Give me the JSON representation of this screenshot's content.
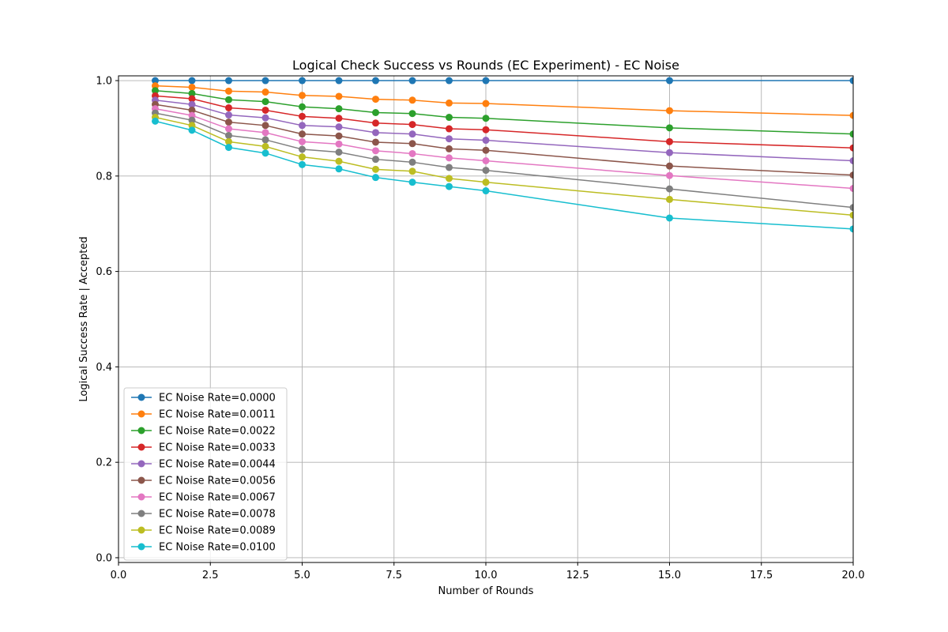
{
  "chart_data": {
    "type": "line",
    "title": "Logical Check Success vs Rounds (EC Experiment) - EC Noise",
    "xlabel": "Number of Rounds",
    "ylabel": "Logical Success Rate | Accepted",
    "xlim": [
      0,
      20
    ],
    "ylim": [
      -0.01,
      1.01
    ],
    "xticks": [
      0,
      2.5,
      5,
      7.5,
      10,
      12.5,
      15,
      17.5,
      20
    ],
    "xtick_labels": [
      "0.0",
      "2.5",
      "5.0",
      "7.5",
      "10.0",
      "12.5",
      "15.0",
      "17.5",
      "20.0"
    ],
    "yticks": [
      0,
      0.2,
      0.4,
      0.6,
      0.8,
      1.0
    ],
    "ytick_labels": [
      "0.0",
      "0.2",
      "0.4",
      "0.6",
      "0.8",
      "1.0"
    ],
    "grid": true,
    "legend_position": "lower-left",
    "x": [
      1,
      2,
      3,
      4,
      5,
      6,
      7,
      8,
      9,
      10,
      15,
      20
    ],
    "series": [
      {
        "name": "EC Noise Rate=0.0000",
        "color": "#1f77b4",
        "values": [
          1.0,
          1.0,
          1.0,
          1.0,
          1.0,
          1.0,
          1.0,
          1.0,
          1.0,
          1.0,
          1.0,
          1.0
        ]
      },
      {
        "name": "EC Noise Rate=0.0011",
        "color": "#ff7f0e",
        "values": [
          0.989,
          0.986,
          0.978,
          0.976,
          0.969,
          0.967,
          0.961,
          0.959,
          0.953,
          0.952,
          0.937,
          0.927
        ]
      },
      {
        "name": "EC Noise Rate=0.0022",
        "color": "#2ca02c",
        "values": [
          0.979,
          0.973,
          0.96,
          0.956,
          0.945,
          0.941,
          0.933,
          0.931,
          0.923,
          0.921,
          0.901,
          0.888
        ]
      },
      {
        "name": "EC Noise Rate=0.0033",
        "color": "#d62728",
        "values": [
          0.968,
          0.962,
          0.943,
          0.938,
          0.925,
          0.921,
          0.911,
          0.908,
          0.899,
          0.897,
          0.872,
          0.859
        ]
      },
      {
        "name": "EC Noise Rate=0.0044",
        "color": "#9467bd",
        "values": [
          0.959,
          0.95,
          0.928,
          0.922,
          0.906,
          0.903,
          0.891,
          0.888,
          0.878,
          0.875,
          0.849,
          0.832
        ]
      },
      {
        "name": "EC Noise Rate=0.0056",
        "color": "#8c564b",
        "values": [
          0.95,
          0.938,
          0.913,
          0.906,
          0.888,
          0.884,
          0.871,
          0.868,
          0.857,
          0.854,
          0.821,
          0.802
        ]
      },
      {
        "name": "EC Noise Rate=0.0067",
        "color": "#e377c2",
        "values": [
          0.941,
          0.927,
          0.899,
          0.891,
          0.872,
          0.867,
          0.853,
          0.847,
          0.838,
          0.832,
          0.801,
          0.774
        ]
      },
      {
        "name": "EC Noise Rate=0.0078",
        "color": "#7f7f7f",
        "values": [
          0.932,
          0.917,
          0.885,
          0.876,
          0.856,
          0.85,
          0.835,
          0.829,
          0.818,
          0.812,
          0.773,
          0.734
        ]
      },
      {
        "name": "EC Noise Rate=0.0089",
        "color": "#bcbd22",
        "values": [
          0.923,
          0.906,
          0.872,
          0.862,
          0.84,
          0.831,
          0.814,
          0.81,
          0.795,
          0.787,
          0.751,
          0.718
        ]
      },
      {
        "name": "EC Noise Rate=0.0100",
        "color": "#17becf",
        "values": [
          0.915,
          0.896,
          0.86,
          0.848,
          0.824,
          0.815,
          0.797,
          0.787,
          0.778,
          0.769,
          0.712,
          0.689
        ]
      }
    ]
  }
}
